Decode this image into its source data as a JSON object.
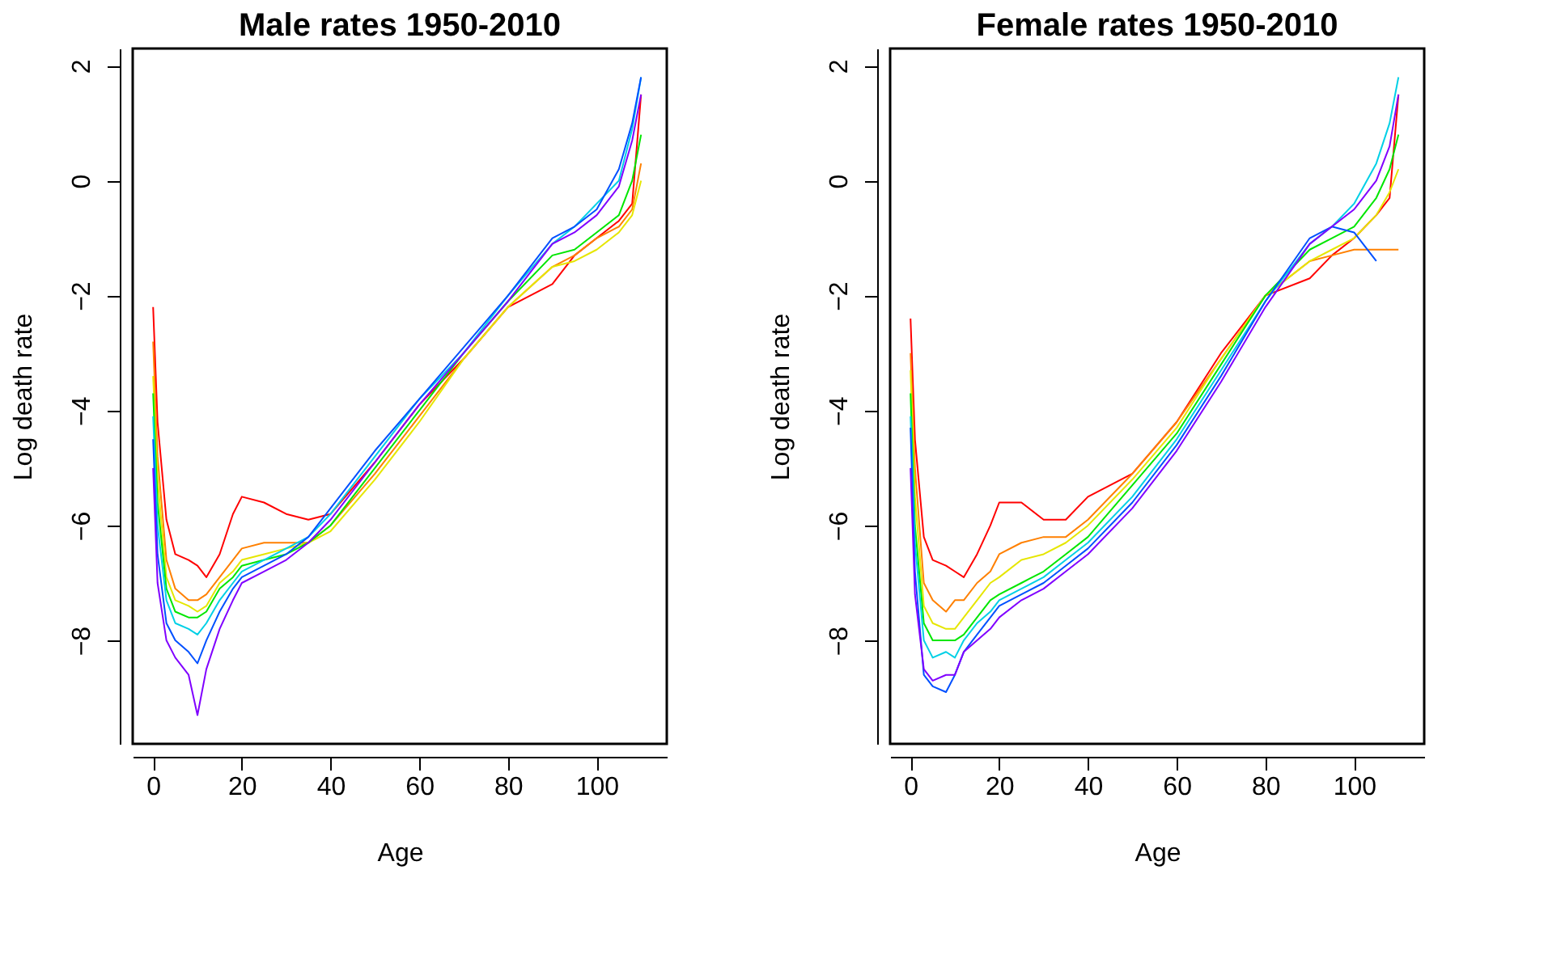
{
  "chart_data": [
    {
      "type": "line",
      "title": "Male rates 1950-2010",
      "xlabel": "Age",
      "ylabel": "Log death rate",
      "x": [
        0,
        1,
        3,
        5,
        8,
        10,
        12,
        15,
        18,
        20,
        25,
        30,
        35,
        40,
        50,
        60,
        70,
        80,
        90,
        95,
        100,
        105,
        108,
        110
      ],
      "xlim": [
        -4.6,
        115.8
      ],
      "ylim": [
        -9.8,
        2.3
      ],
      "xticks": [
        0,
        20,
        40,
        60,
        80,
        100
      ],
      "yticks": [
        -8,
        -6,
        -4,
        -2,
        0,
        2
      ],
      "grid": false,
      "series": [
        {
          "color": "#ff0000",
          "values": [
            -2.2,
            -4.2,
            -5.9,
            -6.5,
            -6.6,
            -6.7,
            -6.9,
            -6.5,
            -5.8,
            -5.5,
            -5.6,
            -5.8,
            -5.9,
            -5.8,
            -4.9,
            -3.9,
            -3.1,
            -2.2,
            -1.8,
            -1.3,
            -1.0,
            -0.7,
            -0.4,
            1.5
          ]
        },
        {
          "color": "#ff8000",
          "values": [
            -2.8,
            -4.8,
            -6.6,
            -7.1,
            -7.3,
            -7.3,
            -7.2,
            -6.9,
            -6.6,
            -6.4,
            -6.3,
            -6.3,
            -6.3,
            -6.0,
            -5.1,
            -4.1,
            -3.1,
            -2.2,
            -1.5,
            -1.3,
            -1.0,
            -0.8,
            -0.5,
            0.3
          ]
        },
        {
          "color": "#e6e600",
          "values": [
            -3.4,
            -5.2,
            -6.9,
            -7.3,
            -7.4,
            -7.5,
            -7.4,
            -7.0,
            -6.8,
            -6.6,
            -6.5,
            -6.4,
            -6.3,
            -6.1,
            -5.2,
            -4.2,
            -3.1,
            -2.2,
            -1.5,
            -1.4,
            -1.2,
            -0.9,
            -0.6,
            0.0
          ]
        },
        {
          "color": "#00e600",
          "values": [
            -3.7,
            -5.6,
            -7.1,
            -7.5,
            -7.6,
            -7.6,
            -7.5,
            -7.1,
            -6.9,
            -6.7,
            -6.6,
            -6.5,
            -6.3,
            -6.0,
            -5.0,
            -4.0,
            -3.0,
            -2.1,
            -1.3,
            -1.2,
            -0.9,
            -0.6,
            0.0,
            0.8
          ]
        },
        {
          "color": "#00d0e6",
          "values": [
            -4.1,
            -6.0,
            -7.3,
            -7.7,
            -7.8,
            -7.9,
            -7.7,
            -7.3,
            -7.0,
            -6.8,
            -6.6,
            -6.4,
            -6.2,
            -5.8,
            -4.8,
            -3.8,
            -3.0,
            -2.0,
            -1.1,
            -0.8,
            -0.4,
            0.0,
            0.9,
            1.8
          ]
        },
        {
          "color": "#0050ff",
          "values": [
            -4.5,
            -6.5,
            -7.7,
            -8.0,
            -8.2,
            -8.4,
            -8.0,
            -7.5,
            -7.1,
            -6.9,
            -6.7,
            -6.5,
            -6.2,
            -5.7,
            -4.7,
            -3.8,
            -2.9,
            -2.0,
            -1.0,
            -0.8,
            -0.5,
            0.2,
            1.0,
            1.8
          ]
        },
        {
          "color": "#8000ff",
          "values": [
            -5.0,
            -7.0,
            -8.0,
            -8.3,
            -8.6,
            -9.3,
            -8.5,
            -7.8,
            -7.3,
            -7.0,
            -6.8,
            -6.6,
            -6.3,
            -5.9,
            -4.9,
            -3.9,
            -3.0,
            -2.1,
            -1.1,
            -0.9,
            -0.6,
            -0.1,
            0.7,
            1.5
          ]
        }
      ]
    },
    {
      "type": "line",
      "title": "Female rates 1950-2010",
      "xlabel": "Age",
      "ylabel": "Log death rate",
      "x": [
        0,
        1,
        3,
        5,
        8,
        10,
        12,
        15,
        18,
        20,
        25,
        30,
        35,
        40,
        50,
        60,
        70,
        80,
        90,
        95,
        100,
        105,
        108,
        110
      ],
      "xlim": [
        -4.6,
        115.8
      ],
      "ylim": [
        -9.8,
        2.3
      ],
      "xticks": [
        0,
        20,
        40,
        60,
        80,
        100
      ],
      "yticks": [
        -8,
        -6,
        -4,
        -2,
        0,
        2
      ],
      "grid": false,
      "series": [
        {
          "color": "#ff0000",
          "values": [
            -2.4,
            -4.5,
            -6.2,
            -6.6,
            -6.7,
            -6.8,
            -6.9,
            -6.5,
            -6.0,
            -5.6,
            -5.6,
            -5.9,
            -5.9,
            -5.5,
            -5.1,
            -4.2,
            -3.0,
            -2.0,
            -1.7,
            -1.3,
            -1.0,
            -0.6,
            -0.3,
            1.5
          ]
        },
        {
          "color": "#ff8000",
          "values": [
            -3.0,
            -5.0,
            -7.0,
            -7.3,
            -7.5,
            -7.3,
            -7.3,
            -7.0,
            -6.8,
            -6.5,
            -6.3,
            -6.2,
            -6.2,
            -5.9,
            -5.1,
            -4.2,
            -3.1,
            -2.0,
            -1.4,
            -1.3,
            -1.2,
            -1.2,
            -1.2,
            -1.2
          ]
        },
        {
          "color": "#e6e600",
          "values": [
            -3.3,
            -5.5,
            -7.4,
            -7.7,
            -7.8,
            -7.8,
            -7.6,
            -7.3,
            -7.0,
            -6.9,
            -6.6,
            -6.5,
            -6.3,
            -6.0,
            -5.2,
            -4.3,
            -3.1,
            -2.0,
            -1.4,
            -1.2,
            -1.0,
            -0.6,
            -0.2,
            0.2
          ]
        },
        {
          "color": "#00e600",
          "values": [
            -3.7,
            -6.0,
            -7.7,
            -8.0,
            -8.0,
            -8.0,
            -7.9,
            -7.6,
            -7.3,
            -7.2,
            -7.0,
            -6.8,
            -6.5,
            -6.2,
            -5.3,
            -4.4,
            -3.2,
            -2.0,
            -1.2,
            -1.0,
            -0.8,
            -0.3,
            0.2,
            0.8
          ]
        },
        {
          "color": "#00d0e6",
          "values": [
            -4.1,
            -6.3,
            -8.0,
            -8.3,
            -8.2,
            -8.3,
            -8.0,
            -7.7,
            -7.5,
            -7.3,
            -7.1,
            -6.9,
            -6.6,
            -6.3,
            -5.5,
            -4.5,
            -3.3,
            -2.1,
            -1.1,
            -0.8,
            -0.4,
            0.3,
            1.0,
            1.8
          ]
        },
        {
          "color": "#0050ff",
          "values": [
            -4.3,
            -6.8,
            -8.6,
            -8.8,
            -8.9,
            -8.6,
            -8.2,
            -7.9,
            -7.6,
            -7.4,
            -7.2,
            -7.0,
            -6.7,
            -6.4,
            -5.6,
            -4.6,
            -3.4,
            -2.1,
            -1.0,
            -0.8,
            -0.9,
            -1.4,
            null,
            null
          ]
        },
        {
          "color": "#8000ff",
          "values": [
            -5.0,
            -7.2,
            -8.5,
            -8.7,
            -8.6,
            -8.6,
            -8.2,
            -8.0,
            -7.8,
            -7.6,
            -7.3,
            -7.1,
            -6.8,
            -6.5,
            -5.7,
            -4.7,
            -3.5,
            -2.2,
            -1.1,
            -0.8,
            -0.5,
            0.0,
            0.6,
            1.5
          ]
        }
      ]
    }
  ]
}
